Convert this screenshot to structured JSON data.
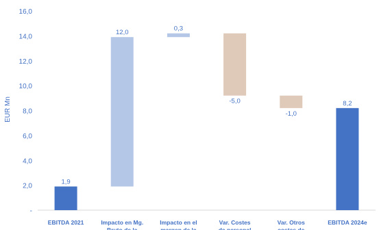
{
  "chart_data": {
    "type": "waterfall",
    "ylabel": "EUR Mn",
    "ylim": [
      0,
      16
    ],
    "y_ticks": [
      "-",
      "2,0",
      "4,0",
      "6,0",
      "8,0",
      "10,0",
      "12,0",
      "14,0",
      "16,0"
    ],
    "grid": false,
    "categories": [
      [
        "EBITDA 2021"
      ],
      [
        "Impacto en Mg.",
        "Bruto de la"
      ],
      [
        "Impacto en el",
        "margen de la"
      ],
      [
        "Var. Costes",
        "de personal"
      ],
      [
        "Var. Otros",
        "costes de"
      ],
      [
        "EBITDA 2024e"
      ]
    ],
    "bars": [
      {
        "start": 0,
        "end": 1.9,
        "value": 1.9,
        "label": "1,9",
        "kind": "total"
      },
      {
        "start": 1.9,
        "end": 13.9,
        "value": 12.0,
        "label": "12,0",
        "kind": "increase"
      },
      {
        "start": 13.9,
        "end": 14.2,
        "value": 0.3,
        "label": "0,3",
        "kind": "increase"
      },
      {
        "start": 14.2,
        "end": 9.2,
        "value": -5.0,
        "label": "-5,0",
        "kind": "decrease"
      },
      {
        "start": 9.2,
        "end": 8.2,
        "value": -1.0,
        "label": "-1,0",
        "kind": "decrease"
      },
      {
        "start": 0,
        "end": 8.2,
        "value": 8.2,
        "label": "8,2",
        "kind": "total"
      }
    ],
    "colors": {
      "total": "#4472c4",
      "increase": "#b4c7e7",
      "decrease": "#dfc9b8",
      "text": "#4472c4",
      "axis": "#d9d9d9"
    }
  }
}
